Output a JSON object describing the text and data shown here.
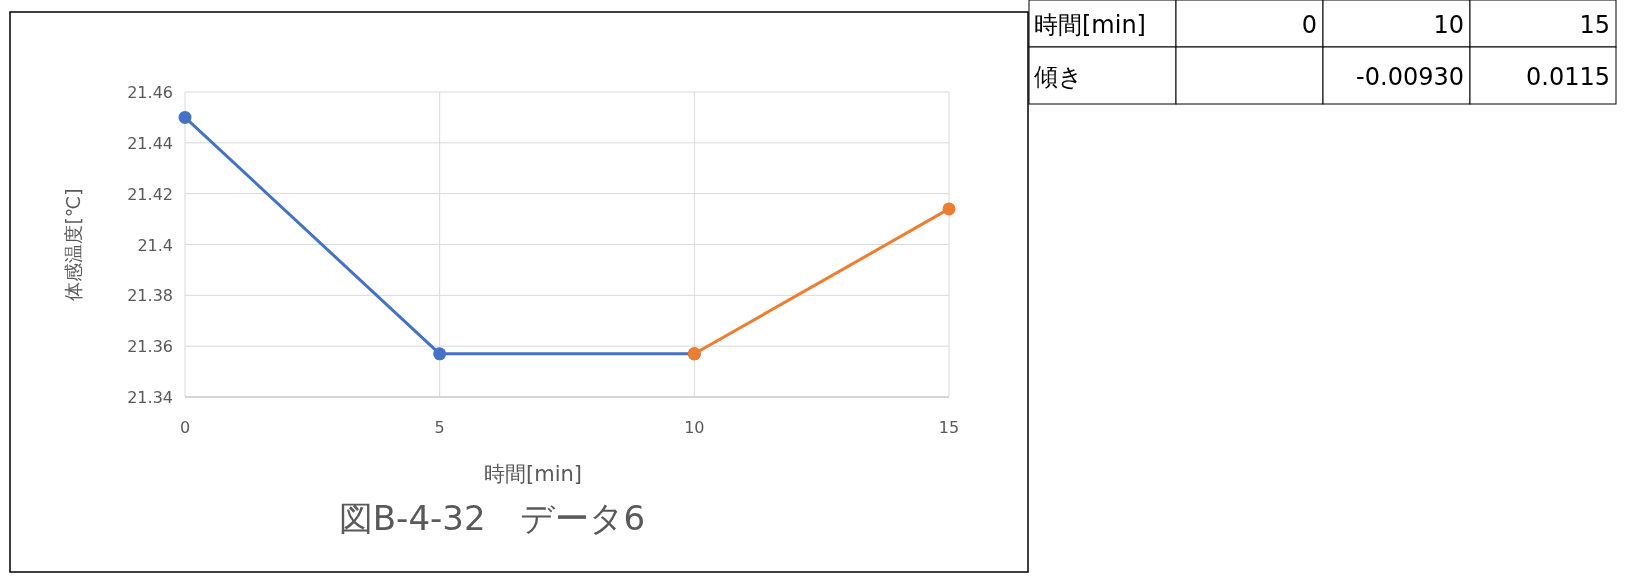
{
  "chart_data": [
    {
      "type": "line",
      "title": "図B-4-32　データ6",
      "xlabel": "時間[min]",
      "ylabel": "体感温度[℃]",
      "series": [
        {
          "color": "#4472c4",
          "x": [
            0,
            5,
            10
          ],
          "values": [
            21.45,
            21.357,
            21.357
          ]
        },
        {
          "color": "#ed7d31",
          "x": [
            10,
            15
          ],
          "values": [
            21.357,
            21.414
          ]
        }
      ],
      "xlim": [
        0,
        15
      ],
      "xticks": [
        0,
        5,
        10,
        15
      ],
      "ylim": [
        21.34,
        21.46
      ],
      "yticks": [
        21.34,
        21.36,
        21.38,
        {
          "value": 21.4,
          "label": "21.4"
        },
        21.42,
        21.44,
        21.46
      ],
      "grid": true,
      "marker": "circle",
      "line_style": "solid"
    },
    {
      "type": "other",
      "cell_labels": [
        [
          "時間[min]",
          "0",
          "10",
          "15"
        ],
        [
          "傾き",
          null,
          "-0.00930",
          "0.0115"
        ]
      ]
    }
  ]
}
